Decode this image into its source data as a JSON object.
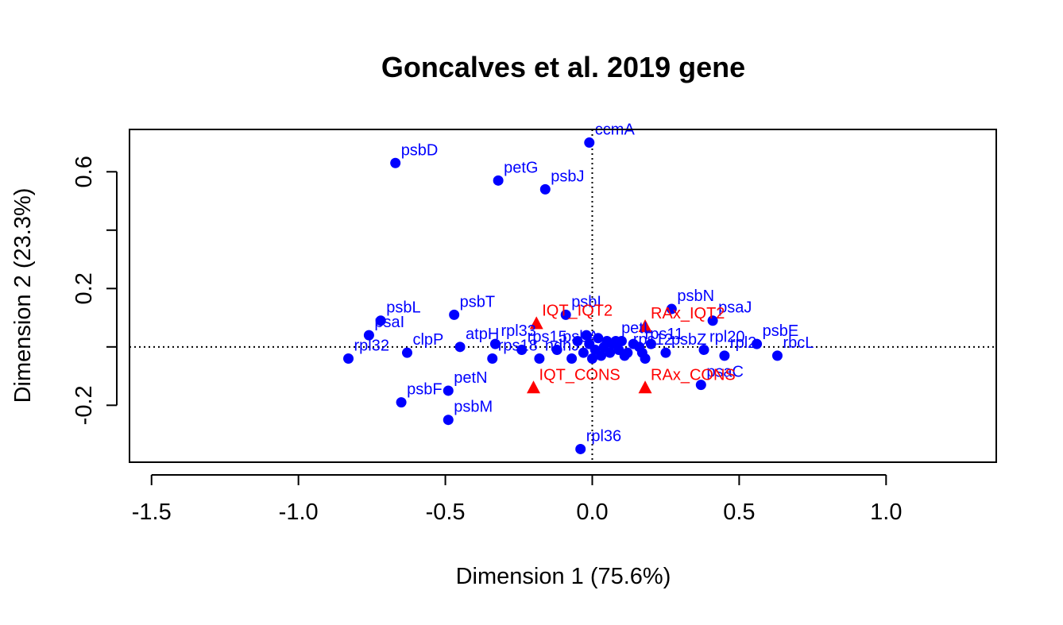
{
  "colors": {
    "genes": "#0000ff",
    "species": "#ff0000",
    "axes": "#000000"
  },
  "chart_data": {
    "type": "scatter",
    "title": "Goncalves et al. 2019 gene",
    "xlabel": "Dimension 1 (75.6%)",
    "ylabel": "Dimension 2 (23.3%)",
    "xlim": [
      -1.575,
      1.375
    ],
    "ylim": [
      -0.395,
      0.745
    ],
    "x_ticks": [
      -1.5,
      -1.0,
      -0.5,
      0.0,
      0.5,
      1.0
    ],
    "x_tick_labels": [
      "-1.5",
      "-1.0",
      "-0.5",
      "0.0",
      "0.5",
      "1.0"
    ],
    "y_ticks": [
      -0.2,
      0.0,
      0.2,
      0.4,
      0.6
    ],
    "y_tick_labels": [
      "-0.2",
      "",
      "0.2",
      "",
      "0.6"
    ],
    "grid": false,
    "reference_lines": {
      "x": 0,
      "y": 0,
      "style": "dotted"
    },
    "series": [
      {
        "marker": "circle",
        "color": "#0000ff",
        "points": [
          {
            "label": "ccmA",
            "x": -0.01,
            "y": 0.7
          },
          {
            "label": "psbD",
            "x": -0.67,
            "y": 0.63
          },
          {
            "label": "petG",
            "x": -0.32,
            "y": 0.57
          },
          {
            "label": "psbJ",
            "x": -0.16,
            "y": 0.54
          },
          {
            "label": "psbN",
            "x": 0.27,
            "y": 0.13
          },
          {
            "label": "psbT",
            "x": -0.47,
            "y": 0.11
          },
          {
            "label": "psbL",
            "x": -0.72,
            "y": 0.09
          },
          {
            "label": "psbI",
            "x": -0.09,
            "y": 0.11
          },
          {
            "label": "psaJ",
            "x": 0.41,
            "y": 0.09
          },
          {
            "label": "psaI",
            "x": -0.76,
            "y": 0.04
          },
          {
            "label": "rpl32",
            "x": -0.83,
            "y": -0.04
          },
          {
            "label": "clpP",
            "x": -0.63,
            "y": -0.02
          },
          {
            "label": "atpH",
            "x": -0.45,
            "y": 0.0
          },
          {
            "label": "rpl33",
            "x": -0.33,
            "y": 0.01
          },
          {
            "label": "rps15",
            "x": -0.24,
            "y": -0.01
          },
          {
            "label": "rps18",
            "x": -0.34,
            "y": -0.04
          },
          {
            "label": "psbA",
            "x": -0.12,
            "y": -0.01
          },
          {
            "label": "ndhJ",
            "x": -0.18,
            "y": -0.04
          },
          {
            "label": "petL",
            "x": 0.08,
            "y": 0.02
          },
          {
            "label": "psbE",
            "x": 0.56,
            "y": 0.01
          },
          {
            "label": "rbcL",
            "x": 0.63,
            "y": -0.03
          },
          {
            "label": "rpl20",
            "x": 0.38,
            "y": -0.01
          },
          {
            "label": "rpl2",
            "x": 0.45,
            "y": -0.03
          },
          {
            "label": "psbZ",
            "x": 0.25,
            "y": -0.02
          },
          {
            "label": "rps11",
            "x": 0.16,
            "y": 0.0
          },
          {
            "label": "rps12",
            "x": 0.12,
            "y": -0.02
          },
          {
            "label": "psaC",
            "x": 0.37,
            "y": -0.13
          },
          {
            "label": "petN",
            "x": -0.49,
            "y": -0.15
          },
          {
            "label": "psbF",
            "x": -0.65,
            "y": -0.19
          },
          {
            "label": "psbM",
            "x": -0.49,
            "y": -0.25
          },
          {
            "label": "rpl36",
            "x": -0.04,
            "y": -0.35
          },
          {
            "label": "",
            "x": -0.05,
            "y": 0.02
          },
          {
            "label": "",
            "x": -0.03,
            "y": -0.02
          },
          {
            "label": "",
            "x": -0.01,
            "y": 0.01
          },
          {
            "label": "",
            "x": 0.01,
            "y": -0.01
          },
          {
            "label": "",
            "x": 0.02,
            "y": 0.03
          },
          {
            "label": "",
            "x": 0.03,
            "y": -0.03
          },
          {
            "label": "",
            "x": 0.04,
            "y": 0.0
          },
          {
            "label": "",
            "x": 0.05,
            "y": 0.02
          },
          {
            "label": "",
            "x": 0.06,
            "y": -0.02
          },
          {
            "label": "",
            "x": 0.07,
            "y": 0.01
          },
          {
            "label": "",
            "x": 0.09,
            "y": -0.01
          },
          {
            "label": "",
            "x": 0.1,
            "y": 0.02
          },
          {
            "label": "",
            "x": 0.11,
            "y": -0.03
          },
          {
            "label": "",
            "x": -0.07,
            "y": -0.04
          },
          {
            "label": "",
            "x": 0.14,
            "y": 0.01
          },
          {
            "label": "",
            "x": 0.18,
            "y": -0.04
          },
          {
            "label": "",
            "x": 0.17,
            "y": -0.02
          },
          {
            "label": "",
            "x": 0.2,
            "y": 0.01
          },
          {
            "label": "",
            "x": -0.02,
            "y": 0.04
          },
          {
            "label": "",
            "x": 0.0,
            "y": -0.04
          }
        ]
      },
      {
        "marker": "triangle",
        "color": "#ff0000",
        "points": [
          {
            "label": "IQT_IQT2",
            "x": -0.19,
            "y": 0.08
          },
          {
            "label": "RAx_IQT2",
            "x": 0.18,
            "y": 0.07
          },
          {
            "label": "IQT_CONS",
            "x": -0.2,
            "y": -0.14
          },
          {
            "label": "RAx_CONS",
            "x": 0.18,
            "y": -0.14
          }
        ]
      }
    ]
  }
}
